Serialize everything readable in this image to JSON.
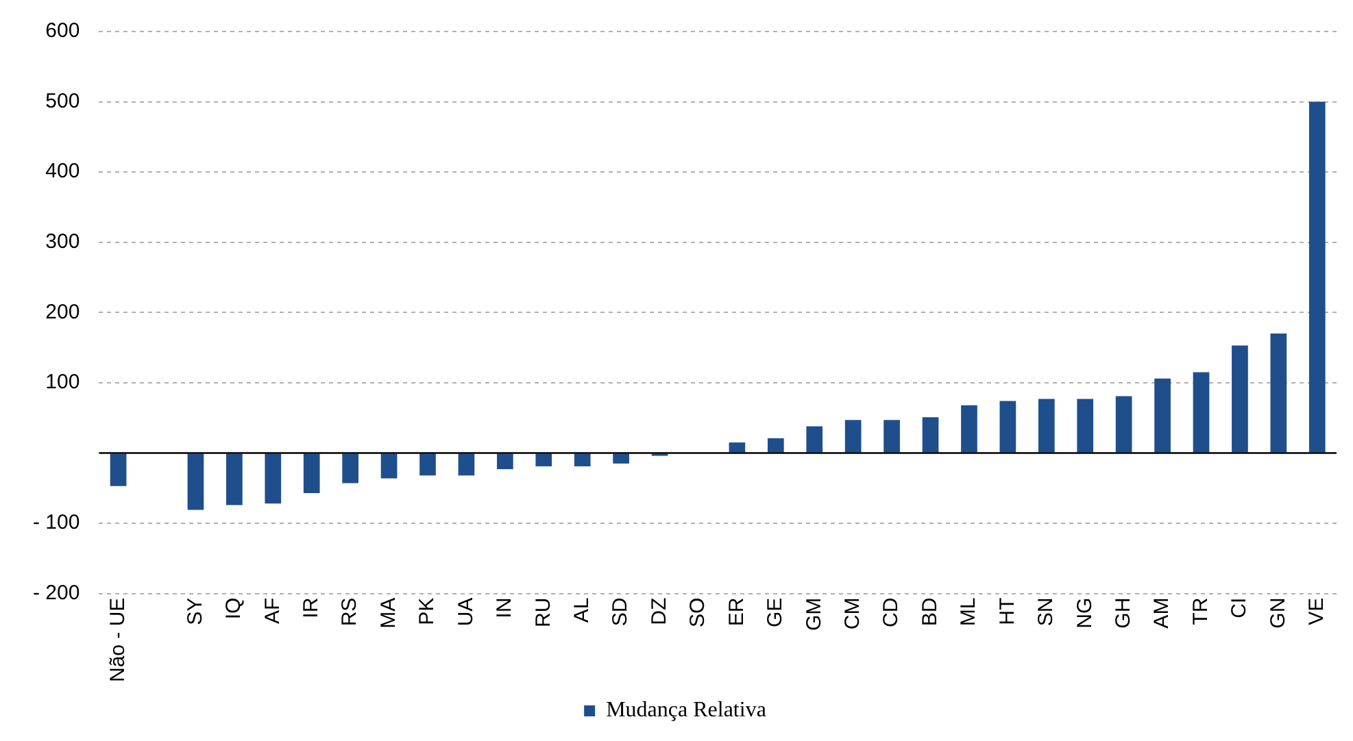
{
  "chart_data": {
    "type": "bar",
    "categories": [
      "Não - UE",
      null,
      "SY",
      "IQ",
      "AF",
      "IR",
      "RS",
      "MA",
      "PK",
      "UA",
      "IN",
      "RU",
      "AL",
      "SD",
      "DZ",
      "SO",
      "ER",
      "GE",
      "GM",
      "CM",
      "CD",
      "BD",
      "ML",
      "HT",
      "SN",
      "NG",
      "GH",
      "AM",
      "TR",
      "CI",
      "GN",
      "VE"
    ],
    "series": [
      {
        "name": "Mudança Relativa",
        "color": "#1f4e8c",
        "values": [
          -47,
          null,
          -81,
          -74,
          -72,
          -57,
          -43,
          -36,
          -32,
          -32,
          -23,
          -19,
          -19,
          -15,
          -4,
          0,
          15,
          21,
          38,
          47,
          47,
          51,
          68,
          74,
          77,
          77,
          81,
          106,
          115,
          153,
          170,
          500
        ]
      }
    ],
    "ylim": [
      -200,
      600
    ],
    "yticks": [
      {
        "value": -200,
        "label": "- 200"
      },
      {
        "value": -100,
        "label": "- 100"
      },
      {
        "value": 0,
        "label": null
      },
      100,
      200,
      300,
      400,
      500,
      600
    ],
    "ref_lines": [
      {
        "axis": "y",
        "value": 0,
        "color": "#000000"
      }
    ],
    "grid": "y",
    "legend": "bottom"
  }
}
